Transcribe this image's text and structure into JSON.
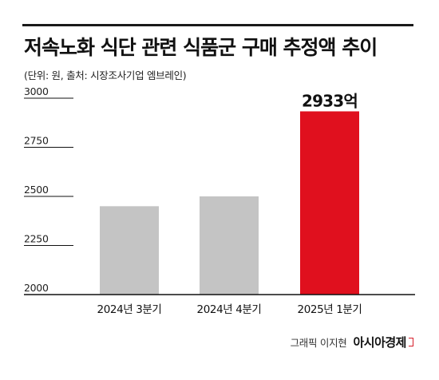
{
  "header": {
    "title": "저속노화 식단 관련 식품군 구매 추정액 추이",
    "subtitle": "(단위: 원, 출처: 시장조사기업 엠브레인)"
  },
  "footer": {
    "credit": "그래픽 이지현",
    "brand": "아시아경제"
  },
  "colors": {
    "bar_default": "#c4c4c4",
    "bar_highlight": "#e0101e",
    "axis": "#111111"
  },
  "chart_data": {
    "type": "bar",
    "categories": [
      "2024년 3분기",
      "2024년 4분기",
      "2025년 1분기"
    ],
    "values": [
      2450,
      2500,
      2933
    ],
    "highlight_index": 2,
    "data_labels": [
      "",
      "",
      "2933억"
    ],
    "ylim": [
      2000,
      3000
    ],
    "yticks": [
      3000,
      2750,
      2500,
      2250,
      2000
    ],
    "grid": false
  }
}
